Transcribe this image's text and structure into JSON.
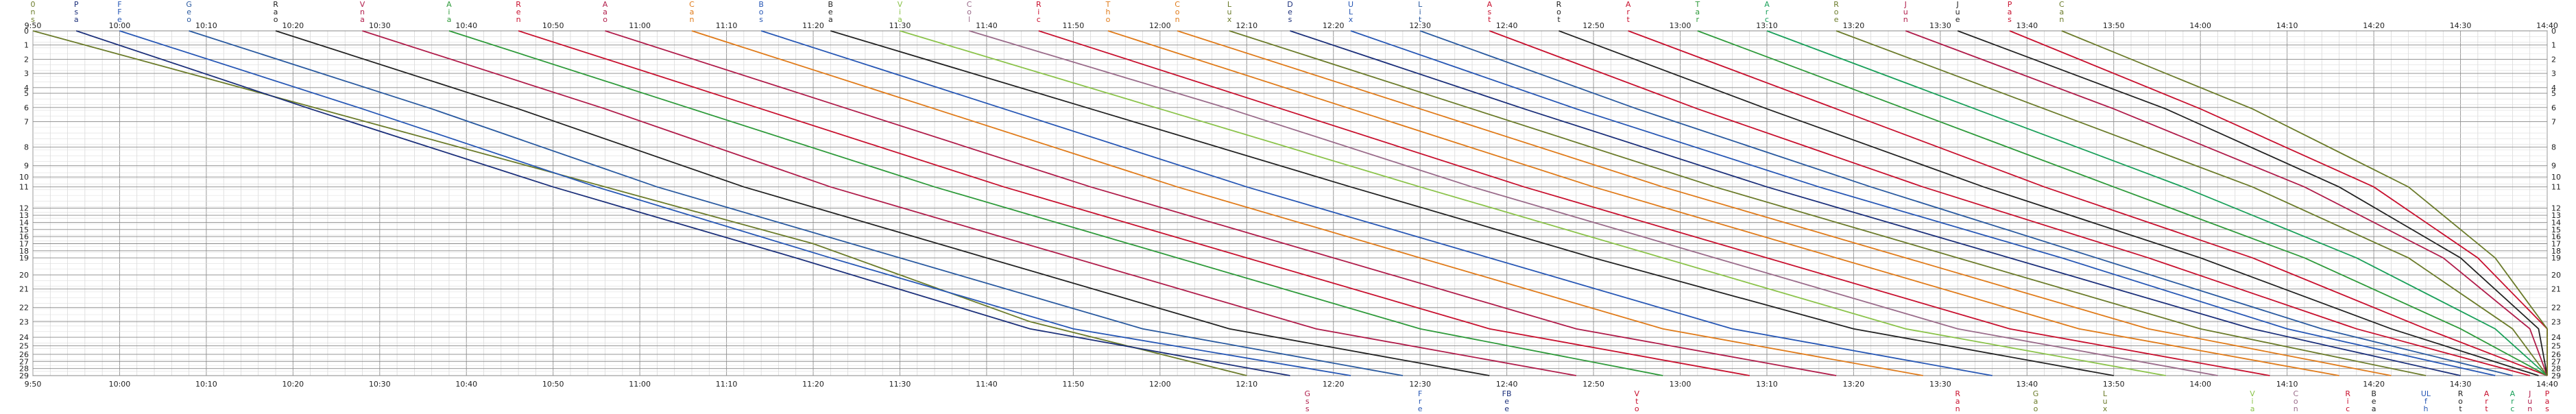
{
  "chart_data": {
    "type": "line",
    "time_ticks": [
      "9:50",
      "10:00",
      "10:10",
      "10:20",
      "10:30",
      "10:40",
      "10:50",
      "11:00",
      "11:10",
      "11:20",
      "11:30",
      "11:40",
      "11:50",
      "12:00",
      "12:10",
      "12:20",
      "12:30",
      "12:40",
      "12:50",
      "13:00",
      "13:10",
      "13:20",
      "13:30",
      "13:40",
      "13:50",
      "14:00",
      "14:10",
      "14:20",
      "14:30",
      "14:40"
    ],
    "xlim": [
      590,
      880
    ],
    "stations": [
      "0",
      "1",
      "2",
      "3",
      "4",
      "5",
      "6",
      "7",
      "8",
      "9",
      "10",
      "11",
      "12",
      "13",
      "14",
      "15",
      "16",
      "17",
      "18",
      "19",
      "20",
      "21",
      "22",
      "23",
      "24",
      "25",
      "26",
      "27",
      "28",
      "29"
    ],
    "station_pos": [
      0,
      10,
      20,
      30,
      40,
      44,
      54,
      64,
      82,
      95,
      103,
      110,
      125,
      130,
      135,
      140,
      145,
      150,
      155,
      160,
      172,
      182,
      195,
      205,
      216,
      222,
      228,
      233,
      238,
      243
    ],
    "series": [
      {
        "code": [
          "0",
          "n",
          "s"
        ],
        "color": "#6b7b2a",
        "x": [
          590,
          620,
          650,
          680,
          705,
          730
        ],
        "y": [
          0,
          50,
          100,
          150,
          205,
          243
        ]
      },
      {
        "code": [
          "P",
          "s",
          "a"
        ],
        "color": "#1b2f7a",
        "x": [
          595,
          622,
          650,
          678,
          705,
          735
        ],
        "y": [
          0,
          55,
          110,
          160,
          210,
          243
        ]
      },
      {
        "code": [
          "F",
          "F",
          "e"
        ],
        "color": "#2757b5",
        "x": [
          600,
          628,
          655,
          682,
          710,
          742
        ],
        "y": [
          0,
          55,
          110,
          160,
          210,
          243
        ]
      },
      {
        "code": [
          "G",
          "e",
          "o"
        ],
        "color": "#2a5aa0",
        "x": [
          608,
          636,
          662,
          690,
          718,
          748
        ],
        "y": [
          0,
          55,
          110,
          160,
          210,
          243
        ]
      },
      {
        "code": [
          "R",
          "a",
          "o"
        ],
        "color": "#222222",
        "x": [
          618,
          646,
          672,
          700,
          728,
          758
        ],
        "y": [
          0,
          55,
          110,
          160,
          210,
          243
        ]
      },
      {
        "code": [
          "V",
          "n",
          "a"
        ],
        "color": "#b01c4a",
        "x": [
          628,
          656,
          682,
          710,
          738,
          768
        ],
        "y": [
          0,
          55,
          110,
          160,
          210,
          243
        ]
      },
      {
        "code": [
          "A",
          "i",
          "a"
        ],
        "color": "#2e9a3a",
        "x": [
          638,
          666,
          694,
          722,
          750,
          778
        ],
        "y": [
          0,
          55,
          110,
          160,
          210,
          243
        ]
      },
      {
        "code": [
          "R",
          "e",
          "n"
        ],
        "color": "#c8102e",
        "x": [
          646,
          674,
          702,
          730,
          758,
          788
        ],
        "y": [
          0,
          55,
          110,
          160,
          210,
          243
        ]
      },
      {
        "code": [
          "A",
          "a",
          "o"
        ],
        "color": "#b01c4a",
        "x": [
          656,
          684,
          712,
          740,
          768,
          798
        ],
        "y": [
          0,
          55,
          110,
          160,
          210,
          243
        ]
      },
      {
        "code": [
          "C",
          "a",
          "n"
        ],
        "color": "#e07b1a",
        "x": [
          666,
          694,
          722,
          750,
          778,
          808
        ],
        "y": [
          0,
          55,
          110,
          160,
          210,
          243
        ]
      },
      {
        "code": [
          "B",
          "o",
          "s"
        ],
        "color": "#2757b5",
        "x": [
          674,
          702,
          730,
          758,
          786,
          816
        ],
        "y": [
          0,
          55,
          110,
          160,
          210,
          243
        ]
      },
      {
        "code": [
          "B",
          "e",
          "a"
        ],
        "color": "#222222",
        "x": [
          682,
          712,
          742,
          770,
          800,
          830
        ],
        "y": [
          0,
          55,
          110,
          160,
          210,
          243
        ]
      },
      {
        "code": [
          "V",
          "i",
          "a"
        ],
        "color": "#8bc34a",
        "x": [
          690,
          720,
          750,
          778,
          806,
          836
        ],
        "y": [
          0,
          55,
          110,
          160,
          210,
          243
        ]
      },
      {
        "code": [
          "C",
          "o",
          "l"
        ],
        "color": "#9a6b8a",
        "x": [
          698,
          728,
          756,
          784,
          812,
          842
        ],
        "y": [
          0,
          55,
          110,
          160,
          210,
          243
        ]
      },
      {
        "code": [
          "R",
          "i",
          "c"
        ],
        "color": "#c8102e",
        "x": [
          706,
          734,
          762,
          790,
          818,
          848
        ],
        "y": [
          0,
          55,
          110,
          160,
          210,
          243
        ]
      },
      {
        "code": [
          "T",
          "h",
          "o"
        ],
        "color": "#e07b1a",
        "x": [
          714,
          742,
          770,
          798,
          826,
          856
        ],
        "y": [
          0,
          55,
          110,
          160,
          210,
          243
        ]
      },
      {
        "code": [
          "C",
          "o",
          "n"
        ],
        "color": "#e07b1a",
        "x": [
          722,
          750,
          778,
          806,
          834,
          862
        ],
        "y": [
          0,
          55,
          110,
          160,
          210,
          243
        ]
      },
      {
        "code": [
          "L",
          "u",
          "x"
        ],
        "color": "#6b7b2a",
        "x": [
          728,
          756,
          784,
          812,
          840,
          866
        ],
        "y": [
          0,
          55,
          110,
          160,
          210,
          243
        ]
      },
      {
        "code": [
          "D",
          "e",
          "s"
        ],
        "color": "#1b2f7a",
        "x": [
          735,
          762,
          790,
          818,
          846,
          870
        ],
        "y": [
          0,
          55,
          110,
          160,
          210,
          243
        ]
      },
      {
        "code": [
          "U",
          "L",
          "x"
        ],
        "color": "#2757b5",
        "x": [
          742,
          768,
          796,
          824,
          850,
          874
        ],
        "y": [
          0,
          55,
          110,
          160,
          210,
          243
        ]
      },
      {
        "code": [
          "L",
          "i",
          "t"
        ],
        "color": "#2a5aa0",
        "x": [
          750,
          775,
          802,
          828,
          854,
          876
        ],
        "y": [
          0,
          55,
          110,
          160,
          210,
          243
        ]
      },
      {
        "code": [
          "A",
          "s",
          "t"
        ],
        "color": "#c8102e",
        "x": [
          758,
          782,
          808,
          834,
          858,
          878
        ],
        "y": [
          0,
          55,
          110,
          160,
          210,
          243
        ]
      },
      {
        "code": [
          "R",
          "o",
          "t"
        ],
        "color": "#222222",
        "x": [
          766,
          790,
          815,
          840,
          862,
          879
        ],
        "y": [
          0,
          55,
          110,
          160,
          210,
          243
        ]
      },
      {
        "code": [
          "A",
          "r",
          "t"
        ],
        "color": "#c8102e",
        "x": [
          774,
          798,
          822,
          846,
          866,
          880
        ],
        "y": [
          0,
          55,
          110,
          160,
          210,
          243
        ]
      },
      {
        "code": [
          "T",
          "a",
          "r"
        ],
        "color": "#2e9a3a",
        "x": [
          782,
          806,
          830,
          852,
          870,
          880
        ],
        "y": [
          0,
          55,
          110,
          160,
          210,
          243
        ]
      },
      {
        "code": [
          "A",
          "r",
          "c"
        ],
        "color": "#1aa05a",
        "x": [
          790,
          814,
          838,
          858,
          874,
          880
        ],
        "y": [
          0,
          55,
          110,
          160,
          210,
          243
        ]
      },
      {
        "code": [
          "R",
          "o",
          "e"
        ],
        "color": "#6b7b2a",
        "x": [
          798,
          822,
          846,
          864,
          876,
          880
        ],
        "y": [
          0,
          55,
          110,
          160,
          210,
          243
        ]
      },
      {
        "code": [
          "J",
          "u",
          "n"
        ],
        "color": "#b01c4a",
        "x": [
          806,
          830,
          852,
          868,
          878,
          880
        ],
        "y": [
          0,
          55,
          110,
          160,
          210,
          243
        ]
      },
      {
        "code": [
          "J",
          "u",
          "e"
        ],
        "color": "#222222",
        "x": [
          812,
          836,
          856,
          870,
          879,
          880
        ],
        "y": [
          0,
          55,
          110,
          160,
          210,
          243
        ]
      },
      {
        "code": [
          "P",
          "a",
          "s"
        ],
        "color": "#c8102e",
        "x": [
          818,
          840,
          860,
          872,
          880,
          880
        ],
        "y": [
          0,
          55,
          110,
          160,
          210,
          243
        ]
      },
      {
        "code": [
          "C",
          "a",
          "n"
        ],
        "color": "#6b7b2a",
        "x": [
          824,
          846,
          864,
          874,
          880,
          880
        ],
        "y": [
          0,
          55,
          110,
          160,
          210,
          243
        ]
      }
    ],
    "bottom_codes": [
      {
        "code": [
          "G",
          "s",
          "s"
        ],
        "color": "#b01c4a",
        "t": 737
      },
      {
        "code": [
          "F",
          "r",
          "e"
        ],
        "color": "#2757b5",
        "t": 750
      },
      {
        "code": [
          "FB",
          "e",
          "e"
        ],
        "color": "#1b2f7a",
        "t": 760
      },
      {
        "code": [
          "V",
          "t",
          "o"
        ],
        "color": "#c8102e",
        "t": 775
      },
      {
        "code": [
          "R",
          "a",
          "n"
        ],
        "color": "#c8102e",
        "t": 812
      },
      {
        "code": [
          "G",
          "a",
          "o"
        ],
        "color": "#6b7b2a",
        "t": 821
      },
      {
        "code": [
          "V",
          "i",
          "a"
        ],
        "color": "#8bc34a",
        "t": 846
      },
      {
        "code": [
          "C",
          "o",
          "n"
        ],
        "color": "#9a6b8a",
        "t": 851
      },
      {
        "code": [
          "R",
          "i",
          "c"
        ],
        "color": "#c8102e",
        "t": 857
      },
      {
        "code": [
          "L",
          "u",
          "x"
        ],
        "color": "#6b7b2a",
        "t": 829
      },
      {
        "code": [
          "B",
          "e",
          "a"
        ],
        "color": "#222222",
        "t": 860
      },
      {
        "code": [
          "UL",
          "f",
          "h"
        ],
        "color": "#2757b5",
        "t": 866
      },
      {
        "code": [
          "R",
          "o",
          "t"
        ],
        "color": "#222222",
        "t": 870
      },
      {
        "code": [
          "A",
          "r",
          "t"
        ],
        "color": "#c8102e",
        "t": 873
      },
      {
        "code": [
          "A",
          "r",
          "c"
        ],
        "color": "#1aa05a",
        "t": 876
      },
      {
        "code": [
          "J",
          "u",
          "n"
        ],
        "color": "#b01c4a",
        "t": 878
      },
      {
        "code": [
          "P",
          "a",
          "s"
        ],
        "color": "#c8102e",
        "t": 880
      }
    ]
  }
}
